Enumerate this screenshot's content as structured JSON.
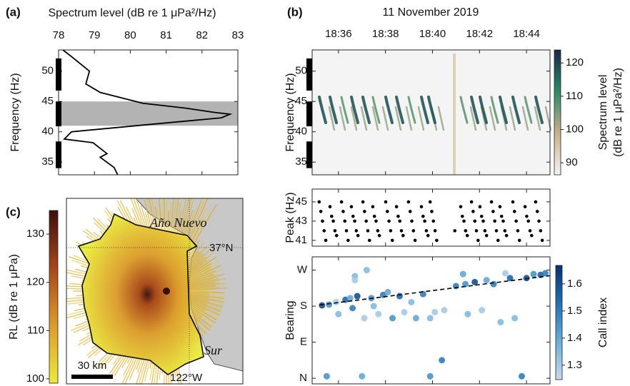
{
  "chart_data": [
    {
      "type": "line",
      "panel_label": "(a)",
      "xlabel": "Spectrum level (dB re 1 μPa²/Hz)",
      "ylabel": "Frequency (Hz)",
      "xlim": [
        78,
        83
      ],
      "xticks": [
        78,
        79,
        80,
        81,
        82,
        83
      ],
      "ylim": [
        32.9,
        53.5
      ],
      "yticks": [
        35,
        40,
        45,
        50
      ],
      "color": "#000000",
      "y": [
        53.5,
        52.4,
        50.0,
        47.9,
        46.5,
        44.7,
        43.9,
        43.2,
        42.9,
        42.3,
        41.1,
        40.0,
        38.8,
        38.2,
        36.4,
        35.8,
        34.1,
        32.9
      ],
      "values": [
        78.12,
        78.36,
        78.86,
        78.76,
        79.16,
        80.35,
        81.55,
        82.34,
        82.78,
        82.54,
        80.35,
        78.36,
        78.16,
        78.96,
        79.35,
        79.16,
        79.55,
        79.65
      ],
      "band": [
        41,
        45
      ],
      "band_color": "#b3b3b3",
      "frequency_bands": [
        [
          46.8,
          52.1
        ],
        [
          40.9,
          45.0
        ],
        [
          34.0,
          38.4
        ]
      ]
    },
    {
      "type": "spectrogram",
      "panel_label": "(b)",
      "title": "11 November 2019",
      "ylabel": "Frequency (Hz)",
      "xlim": [
        1114.88,
        1125.0
      ],
      "xticks": [
        {
          "value": 1116,
          "label": "18:36"
        },
        {
          "value": 1118,
          "label": "18:38"
        },
        {
          "value": 1120,
          "label": "18:40"
        },
        {
          "value": 1122,
          "label": "18:42"
        },
        {
          "value": 1124,
          "label": "18:44"
        }
      ],
      "ylim": [
        32.9,
        53.5
      ],
      "yticks": [
        35,
        40,
        45,
        50
      ],
      "colorbar": {
        "label": [
          "Spectrum level",
          "(dB re 1 μPa²/Hz)"
        ],
        "clim": [
          86.4,
          123.9
        ],
        "ticks": [
          90,
          100,
          110,
          120
        ],
        "colors": [
          "#f4f4f4",
          "#c9b08c",
          "#2a8a68",
          "#1c2748"
        ]
      }
    },
    {
      "type": "scatter",
      "ylabel": "Peak (Hz)",
      "xlim": [
        1114.88,
        1125.0
      ],
      "xticks": [
        1116,
        1118,
        1120,
        1122,
        1124
      ],
      "ylim": [
        40.4,
        46.33
      ],
      "yticks": [
        41,
        43,
        45
      ],
      "color": "#000000",
      "x": [
        1115.18,
        1115.25,
        1115.32,
        1115.39,
        1115.46,
        1115.64,
        1115.71,
        1115.78,
        1115.85,
        1115.92,
        1116.13,
        1116.2,
        1116.27,
        1116.34,
        1116.41,
        1116.55,
        1116.62,
        1116.69,
        1116.76,
        1116.83,
        1117.04,
        1117.11,
        1117.18,
        1117.25,
        1117.32,
        1117.46,
        1117.53,
        1117.6,
        1117.67,
        1117.74,
        1118.01,
        1118.08,
        1118.15,
        1118.22,
        1118.29,
        1118.47,
        1118.54,
        1118.61,
        1118.68,
        1118.75,
        1118.98,
        1119.05,
        1119.12,
        1119.19,
        1119.26,
        1119.53,
        1119.6,
        1119.67,
        1119.74,
        1119.81,
        1119.9,
        1119.97,
        1120.04,
        1120.11,
        1120.18,
        1121.2,
        1121.27,
        1121.34,
        1121.41,
        1121.48,
        1121.66,
        1121.73,
        1121.8,
        1121.87,
        1121.94,
        1122.02,
        1122.09,
        1122.16,
        1122.23,
        1122.3,
        1122.51,
        1122.58,
        1122.65,
        1122.72,
        1122.79,
        1122.87,
        1122.94,
        1123.01,
        1123.08,
        1123.15,
        1123.42,
        1123.49,
        1123.56,
        1123.63,
        1123.7,
        1123.94,
        1124.01,
        1124.08,
        1124.15,
        1124.22,
        1124.39,
        1124.46,
        1124.53,
        1124.6,
        1124.67,
        1120.95
      ],
      "values": [
        45,
        44,
        43,
        42,
        41,
        44.5,
        43.5,
        43,
        42,
        41.5,
        45,
        44,
        43,
        42,
        41,
        44.5,
        43.5,
        43,
        42,
        41.5,
        45,
        44,
        43,
        42,
        41,
        44.5,
        43.5,
        43,
        42,
        41.5,
        45,
        44,
        43,
        42,
        41,
        44.5,
        43.5,
        43,
        42,
        41.5,
        45,
        44,
        43,
        42,
        41,
        44.5,
        43.5,
        43,
        42,
        41.5,
        45,
        44,
        43,
        42,
        41,
        44.5,
        43.5,
        43,
        42,
        41.5,
        45,
        44,
        43,
        42,
        41,
        44.5,
        43.5,
        43,
        42,
        41.5,
        45,
        44,
        43,
        42,
        41,
        44.5,
        43.5,
        43,
        42,
        41.5,
        45,
        44,
        43,
        42,
        41,
        44.5,
        43.5,
        43,
        42,
        41.5,
        45,
        44,
        43,
        42,
        41,
        42
      ]
    },
    {
      "type": "scatter",
      "ylabel": "Bearing",
      "xlim": [
        1114.88,
        1125.0
      ],
      "xticks": [
        1116,
        1118,
        1120,
        1122,
        1124
      ],
      "ylim": [
        -14,
        303
      ],
      "yticks": [
        {
          "value": 0,
          "label": "N"
        },
        {
          "value": 90,
          "label": "E"
        },
        {
          "value": 180,
          "label": "S"
        },
        {
          "value": 270,
          "label": "W"
        }
      ],
      "x": [
        1115.3,
        1115.5,
        1115.6,
        1115.9,
        1116.0,
        1116.3,
        1116.5,
        1116.6,
        1116.7,
        1116.7,
        1116.8,
        1117.0,
        1117.1,
        1117.2,
        1117.4,
        1117.5,
        1117.7,
        1117.9,
        1118.1,
        1118.3,
        1118.6,
        1118.8,
        1119.1,
        1119.3,
        1119.6,
        1119.9,
        1119.9,
        1120.1,
        1120.4,
        1120.5,
        1121.0,
        1121.3,
        1121.4,
        1121.5,
        1121.8,
        1122.1,
        1122.3,
        1122.6,
        1122.9,
        1123.1,
        1123.3,
        1123.5,
        1123.8,
        1124.0,
        1124.3,
        1124.6,
        1124.8
      ],
      "values": [
        182,
        5,
        184,
        190,
        160,
        196,
        200,
        175,
        255,
        245,
        205,
        5,
        150,
        270,
        200,
        180,
        160,
        208,
        215,
        150,
        205,
        165,
        190,
        150,
        210,
        150,
        5,
        165,
        45,
        170,
        230,
        260,
        235,
        160,
        240,
        170,
        245,
        235,
        140,
        262,
        250,
        150,
        5,
        250,
        260,
        258,
        262
      ],
      "color_values": [
        1.6,
        1.45,
        1.45,
        1.3,
        1.35,
        1.55,
        1.4,
        1.5,
        1.35,
        1.3,
        1.6,
        1.4,
        1.3,
        1.35,
        1.45,
        1.35,
        1.3,
        1.5,
        1.4,
        1.45,
        1.55,
        1.3,
        1.35,
        1.4,
        1.5,
        1.35,
        1.45,
        1.3,
        1.5,
        1.3,
        1.5,
        1.4,
        1.45,
        1.35,
        1.6,
        1.3,
        1.4,
        1.5,
        1.35,
        1.3,
        1.55,
        1.35,
        1.5,
        1.6,
        1.45,
        1.55,
        1.5
      ],
      "trend": {
        "x": [
          1115.2,
          1125.0
        ],
        "values": [
          183,
          256
        ],
        "color": "#000000"
      },
      "colorbar": {
        "label": "Call index",
        "clim": [
          1.247,
          1.668
        ],
        "ticks": [
          1.3,
          1.4,
          1.5,
          1.6
        ],
        "colors": [
          "#c6dbef",
          "#6baed6",
          "#2171b5",
          "#08306b"
        ]
      }
    },
    {
      "type": "map",
      "panel_label": "(c)",
      "colorbar": {
        "label": "RL (dB re 1 μPa)",
        "clim": [
          99.1,
          134.9
        ],
        "ticks": [
          100,
          110,
          120,
          130
        ],
        "colors": [
          "#eaea3c",
          "#dc9c2c",
          "#a8461a",
          "#3a0f10"
        ]
      },
      "labels": {
        "place_north": "Año Nuevo",
        "place_south": "Sur",
        "latitude": "37°N",
        "longitude": "122°W",
        "scale": "30 km"
      }
    }
  ]
}
